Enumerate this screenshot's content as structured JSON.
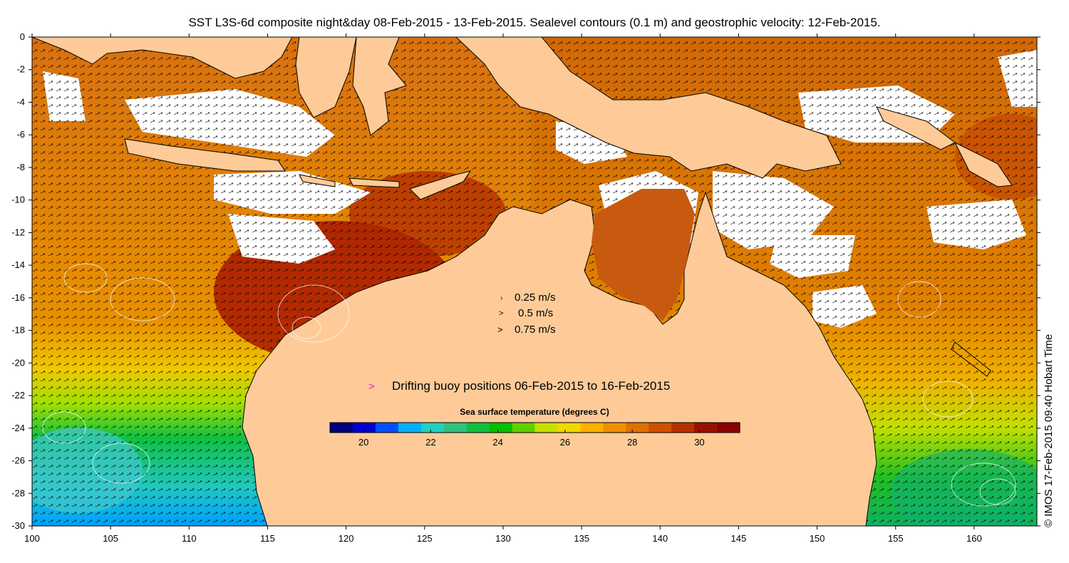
{
  "title": "SST L3S-6d composite night&day 08-Feb-2015 - 13-Feb-2015. Sealevel contours (0.1 m) and geostrophic velocity: 12-Feb-2015.",
  "credit": "© IMOS 17-Feb-2015 09:40 Hobart Time",
  "map": {
    "lon_range": [
      100,
      164
    ],
    "lat_range": [
      -30,
      0
    ],
    "x_ticks": [
      "100",
      "105",
      "110",
      "115",
      "120",
      "125",
      "130",
      "135",
      "140",
      "145",
      "150",
      "155",
      "160"
    ],
    "y_ticks": [
      "0",
      "-2",
      "-4",
      "-6",
      "-8",
      "-10",
      "-12",
      "-14",
      "-16",
      "-18",
      "-20",
      "-22",
      "-24",
      "-26",
      "-28",
      "-30"
    ],
    "colors": {
      "land": "#fecb98",
      "cloud": "#ffffff",
      "buoy": "#ff00ff"
    }
  },
  "velocity_legend": {
    "items": [
      "0.25 m/s",
      "0.5 m/s",
      "0.75 m/s"
    ]
  },
  "buoy_legend": {
    "marker": ">",
    "label": "Drifting buoy positions 06-Feb-2015 to 16-Feb-2015"
  },
  "colorbar": {
    "title": "Sea surface temperature (degrees C)",
    "range": [
      19,
      31.2
    ],
    "ticks": [
      "20",
      "22",
      "24",
      "26",
      "28",
      "30"
    ],
    "colors": [
      "#00007f",
      "#0000d0",
      "#0050ff",
      "#00b0ff",
      "#20d0c0",
      "#30c080",
      "#10c040",
      "#00c000",
      "#60d000",
      "#c8e000",
      "#f0d800",
      "#ffb000",
      "#f09000",
      "#e07000",
      "#d05000",
      "#b83000",
      "#9a1000",
      "#8a0000"
    ]
  }
}
